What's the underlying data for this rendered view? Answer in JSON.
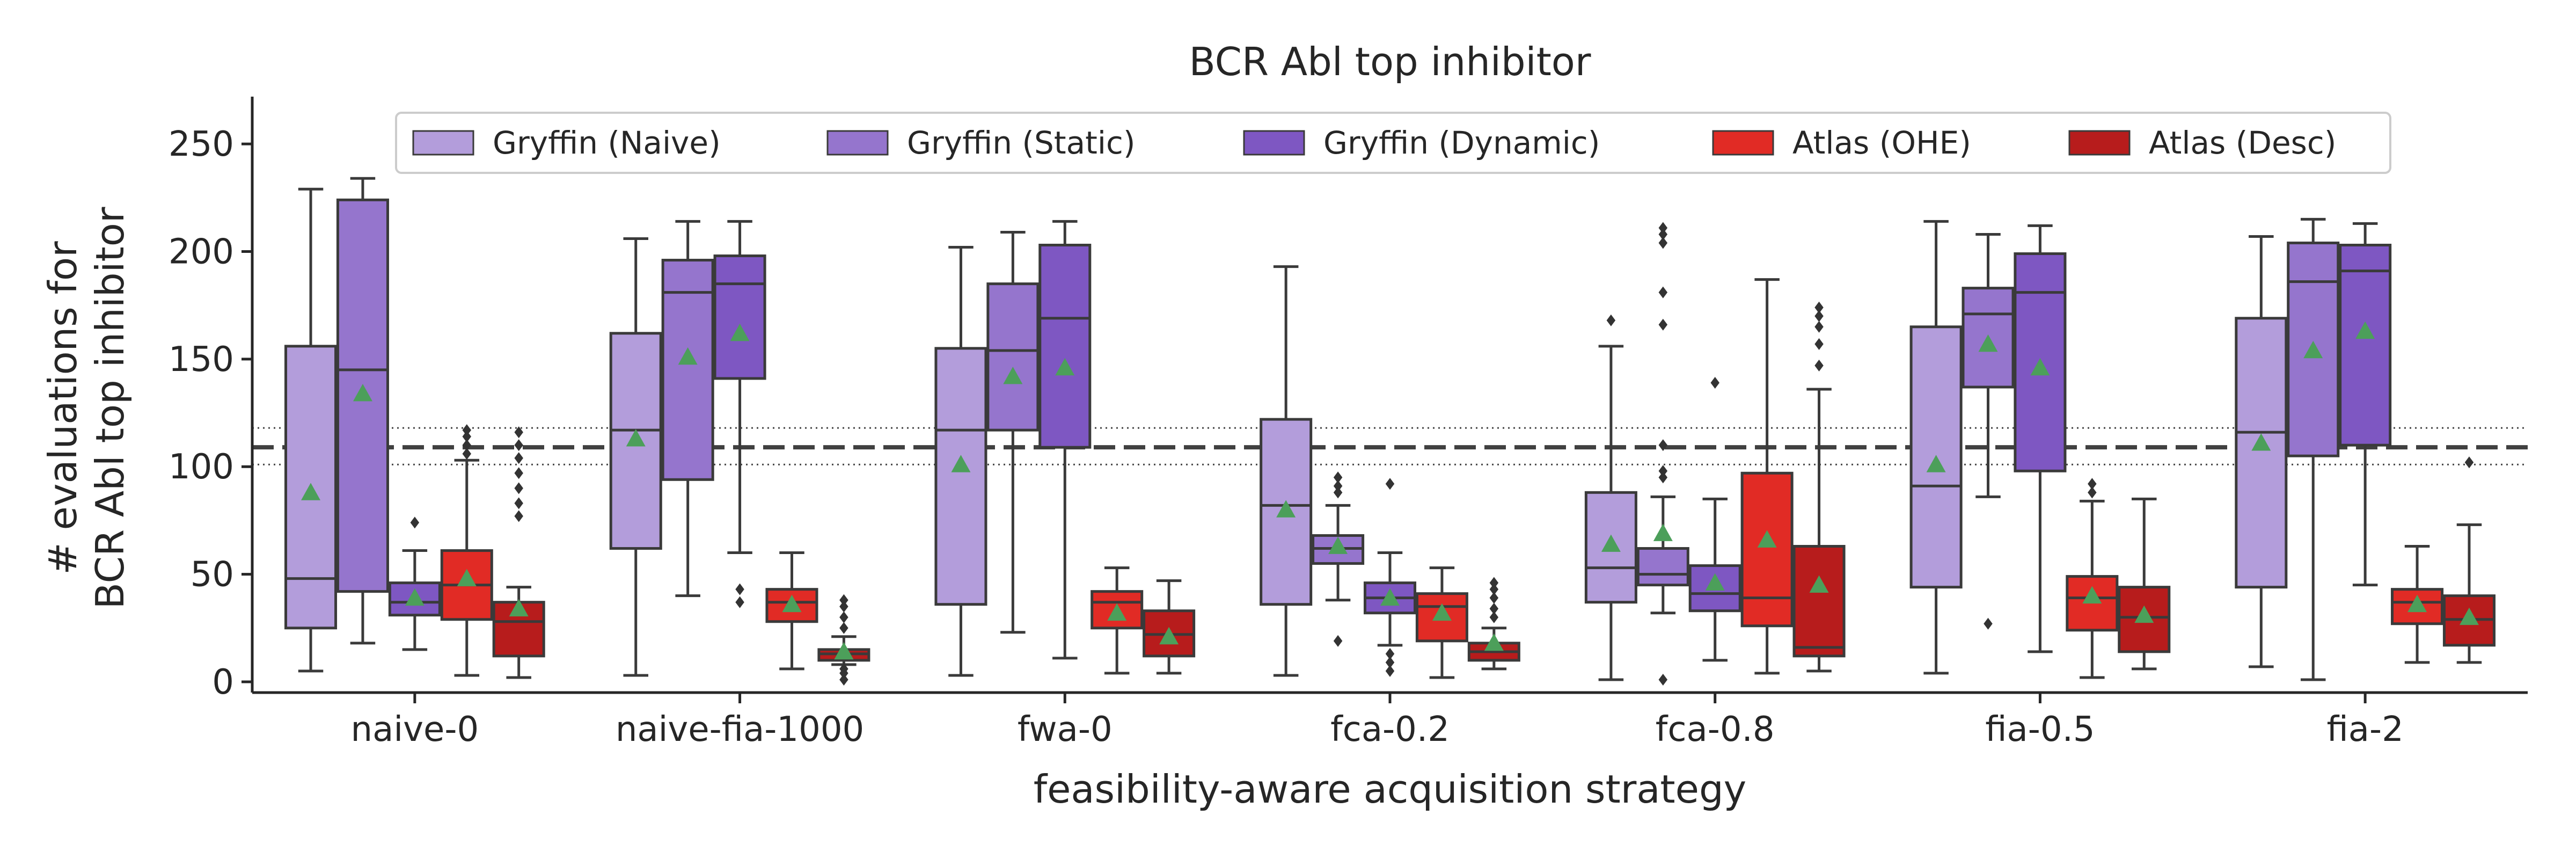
{
  "chart_data": {
    "type": "box",
    "title": "BCR Abl top inhibitor",
    "xlabel": "feasibility-aware acquisition strategy",
    "ylabel_lines": [
      "# evaluations for",
      "BCR Abl top inhibitor"
    ],
    "ylim": [
      -5,
      272
    ],
    "yticks": [
      0,
      50,
      100,
      150,
      200,
      250
    ],
    "categories": [
      "naive-0",
      "naive-fia-1000",
      "fwa-0",
      "fca-0.2",
      "fca-0.8",
      "fia-0.5",
      "fia-2"
    ],
    "reference_lines": {
      "dashed": 109,
      "dotted": [
        101,
        118
      ]
    },
    "legend_position": "top-center",
    "grid": false,
    "series": [
      {
        "name": "Gryffin (Naive)",
        "color": "#b39ddb",
        "boxes": [
          {
            "whislo": 5,
            "q1": 25,
            "med": 48,
            "q3": 156,
            "whishi": 229,
            "mean": 88,
            "fliers": []
          },
          {
            "whislo": 3,
            "q1": 62,
            "med": 117,
            "q3": 162,
            "whishi": 206,
            "mean": 113,
            "fliers": []
          },
          {
            "whislo": 3,
            "q1": 36,
            "med": 117,
            "q3": 155,
            "whishi": 202,
            "mean": 101,
            "fliers": []
          },
          {
            "whislo": 3,
            "q1": 36,
            "med": 82,
            "q3": 122,
            "whishi": 193,
            "mean": 80,
            "fliers": []
          },
          {
            "whislo": 1,
            "q1": 37,
            "med": 53,
            "q3": 88,
            "whishi": 156,
            "mean": 64,
            "fliers": [
              168
            ]
          },
          {
            "whislo": 4,
            "q1": 44,
            "med": 91,
            "q3": 165,
            "whishi": 214,
            "mean": 101,
            "fliers": []
          },
          {
            "whislo": 7,
            "q1": 44,
            "med": 116,
            "q3": 169,
            "whishi": 207,
            "mean": 111,
            "fliers": []
          }
        ]
      },
      {
        "name": "Gryffin (Static)",
        "color": "#9575cd",
        "boxes": [
          {
            "whislo": 18,
            "q1": 42,
            "med": 145,
            "q3": 224,
            "whishi": 234,
            "mean": 134,
            "fliers": []
          },
          {
            "whislo": 40,
            "q1": 94,
            "med": 181,
            "q3": 196,
            "whishi": 214,
            "mean": 151,
            "fliers": []
          },
          {
            "whislo": 23,
            "q1": 117,
            "med": 154,
            "q3": 185,
            "whishi": 209,
            "mean": 142,
            "fliers": []
          },
          {
            "whislo": 38,
            "q1": 55,
            "med": 62,
            "q3": 68,
            "whishi": 82,
            "mean": 63,
            "fliers": [
              19,
              88,
              91,
              95
            ]
          },
          {
            "whislo": 32,
            "q1": 45,
            "med": 50,
            "q3": 62,
            "whishi": 86,
            "mean": 69,
            "fliers": [
              1,
              95,
              98,
              110,
              166,
              181,
              204,
              208,
              211
            ]
          },
          {
            "whislo": 86,
            "q1": 137,
            "med": 171,
            "q3": 183,
            "whishi": 208,
            "mean": 157,
            "fliers": [
              27
            ]
          },
          {
            "whislo": 1,
            "q1": 105,
            "med": 186,
            "q3": 204,
            "whishi": 215,
            "mean": 154,
            "fliers": []
          }
        ]
      },
      {
        "name": "Gryffin (Dynamic)",
        "color": "#7e57c2",
        "boxes": [
          {
            "whislo": 15,
            "q1": 31,
            "med": 37,
            "q3": 46,
            "whishi": 61,
            "mean": 39,
            "fliers": [
              74
            ]
          },
          {
            "whislo": 60,
            "q1": 141,
            "med": 185,
            "q3": 198,
            "whishi": 214,
            "mean": 162,
            "fliers": [
              37,
              43
            ]
          },
          {
            "whislo": 11,
            "q1": 109,
            "med": 169,
            "q3": 203,
            "whishi": 214,
            "mean": 146,
            "fliers": []
          },
          {
            "whislo": 17,
            "q1": 32,
            "med": 39,
            "q3": 46,
            "whishi": 60,
            "mean": 39,
            "fliers": [
              5,
              9,
              13,
              92
            ]
          },
          {
            "whislo": 10,
            "q1": 33,
            "med": 41,
            "q3": 54,
            "whishi": 85,
            "mean": 46,
            "fliers": [
              139
            ]
          },
          {
            "whislo": 14,
            "q1": 98,
            "med": 181,
            "q3": 199,
            "whishi": 212,
            "mean": 146,
            "fliers": []
          },
          {
            "whislo": 45,
            "q1": 110,
            "med": 191,
            "q3": 203,
            "whishi": 213,
            "mean": 163,
            "fliers": []
          }
        ]
      },
      {
        "name": "Atlas (OHE)",
        "color": "#e12b25",
        "boxes": [
          {
            "whislo": 3,
            "q1": 29,
            "med": 45,
            "q3": 61,
            "whishi": 103,
            "mean": 48,
            "fliers": [
              106,
              110,
              114,
              117
            ]
          },
          {
            "whislo": 6,
            "q1": 28,
            "med": 37,
            "q3": 43,
            "whishi": 60,
            "mean": 36,
            "fliers": []
          },
          {
            "whislo": 4,
            "q1": 25,
            "med": 37,
            "q3": 42,
            "whishi": 53,
            "mean": 32,
            "fliers": []
          },
          {
            "whislo": 2,
            "q1": 19,
            "med": 35,
            "q3": 41,
            "whishi": 53,
            "mean": 32,
            "fliers": []
          },
          {
            "whislo": 4,
            "q1": 26,
            "med": 39,
            "q3": 97,
            "whishi": 187,
            "mean": 66,
            "fliers": []
          },
          {
            "whislo": 2,
            "q1": 24,
            "med": 39,
            "q3": 49,
            "whishi": 84,
            "mean": 40,
            "fliers": [
              88,
              92
            ]
          },
          {
            "whislo": 9,
            "q1": 27,
            "med": 37,
            "q3": 43,
            "whishi": 63,
            "mean": 36,
            "fliers": []
          }
        ]
      },
      {
        "name": "Atlas (Desc)",
        "color": "#b71c1c",
        "boxes": [
          {
            "whislo": 2,
            "q1": 12,
            "med": 28,
            "q3": 37,
            "whishi": 44,
            "mean": 34,
            "fliers": [
              77,
              83,
              90,
              97,
              104,
              110,
              116
            ]
          },
          {
            "whislo": 8,
            "q1": 10,
            "med": 13,
            "q3": 15,
            "whishi": 21,
            "mean": 14,
            "fliers": [
              1,
              4,
              6,
              25,
              30,
              35,
              38
            ]
          },
          {
            "whislo": 4,
            "q1": 12,
            "med": 22,
            "q3": 33,
            "whishi": 47,
            "mean": 21,
            "fliers": []
          },
          {
            "whislo": 6,
            "q1": 10,
            "med": 14,
            "q3": 18,
            "whishi": 25,
            "mean": 18,
            "fliers": [
              30,
              34,
              39,
              43,
              46
            ]
          },
          {
            "whislo": 5,
            "q1": 12,
            "med": 16,
            "q3": 63,
            "whishi": 136,
            "mean": 45,
            "fliers": [
              147,
              157,
              165,
              170,
              174
            ]
          },
          {
            "whislo": 6,
            "q1": 14,
            "med": 30,
            "q3": 44,
            "whishi": 85,
            "mean": 31,
            "fliers": []
          },
          {
            "whislo": 9,
            "q1": 17,
            "med": 29,
            "q3": 40,
            "whishi": 73,
            "mean": 30,
            "fliers": [
              102
            ]
          }
        ]
      }
    ]
  }
}
